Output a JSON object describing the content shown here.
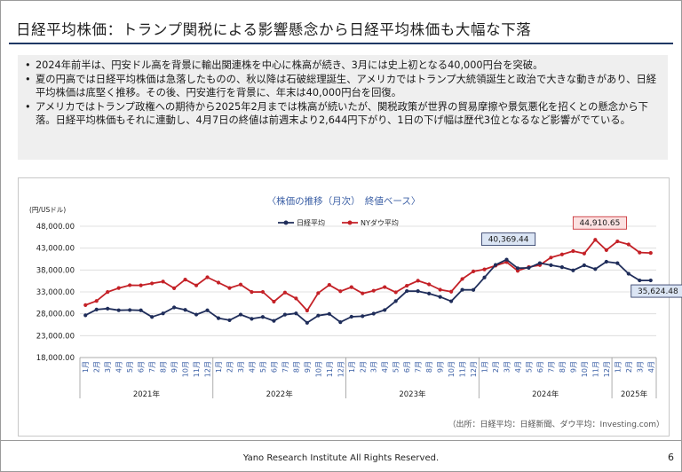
{
  "page": {
    "title": "日経平均株価：トランプ関税による影響懸念から日経平均株価も大幅な下落",
    "bullets": [
      "2024年前半は、円安ドル高を背景に輸出関連株を中心に株高が続き、3月には史上初となる40,000円台を突破。",
      "夏の円高では日経平均株価は急落したものの、秋以降は石破総理誕生、アメリカではトランプ大統領誕生と政治で大きな動きがあり、日経平均株価は底堅く推移。その後、円安進行を背景に、年末は40,000円台を回復。",
      "アメリカではトランプ政権への期待から2025年2月までは株高が続いたが、関税政策が世界の貿易摩擦や景気悪化を招くとの懸念から下落。日経平均株価もそれに連動し、4月7日の終値は前週末より2,644円下がり、1日の下げ幅は歴代3位となるなど影響がでている。"
    ],
    "footer": "Yano Research Institute All Rights Reserved.",
    "page_number": "6"
  },
  "chart_data": {
    "type": "line",
    "title": "〈株価の推移（月次）　終値ベース〉",
    "unit_label": "(円/USドル)",
    "source": "（出所：日経平均：日経新聞、ダウ平均：Investing.com）",
    "ylim": [
      18000,
      48000
    ],
    "yticks": [
      "18,000.00",
      "23,000.00",
      "28,000.00",
      "33,000.00",
      "38,000.00",
      "43,000.00",
      "48,000.00"
    ],
    "grid": true,
    "legend_position": "top-center",
    "x": [
      "1月",
      "2月",
      "3月",
      "4月",
      "5月",
      "6月",
      "7月",
      "8月",
      "9月",
      "10月",
      "11月",
      "12月",
      "1月",
      "2月",
      "3月",
      "4月",
      "5月",
      "6月",
      "7月",
      "8月",
      "9月",
      "10月",
      "11月",
      "12月",
      "1月",
      "2月",
      "3月",
      "4月",
      "5月",
      "6月",
      "7月",
      "8月",
      "9月",
      "10月",
      "11月",
      "12月",
      "1月",
      "2月",
      "3月",
      "4月",
      "5月",
      "6月",
      "7月",
      "8月",
      "9月",
      "10月",
      "11月",
      "12月",
      "1月",
      "2月",
      "3月",
      "4月"
    ],
    "year_groups": [
      {
        "label": "2021年",
        "months": 12
      },
      {
        "label": "2022年",
        "months": 12
      },
      {
        "label": "2023年",
        "months": 12
      },
      {
        "label": "2024年",
        "months": 12
      },
      {
        "label": "2025年",
        "months": 4
      }
    ],
    "series": [
      {
        "name": "日経平均",
        "color": "#1f2d5a",
        "values": [
          27660,
          28970,
          29180,
          28810,
          28860,
          28790,
          27280,
          28090,
          29450,
          28890,
          27820,
          28790,
          27000,
          26530,
          27820,
          26850,
          27280,
          26390,
          27800,
          28090,
          25940,
          27590,
          27970,
          26090,
          27330,
          27450,
          28040,
          28860,
          30890,
          33190,
          33170,
          32620,
          31860,
          30860,
          33490,
          33460,
          36290,
          39170,
          40369,
          38410,
          38490,
          39580,
          39100,
          38650,
          37920,
          39080,
          38210,
          39890,
          39570,
          37160,
          35620,
          35624
        ]
      },
      {
        "name": "NYダウ平均",
        "color": "#c42127",
        "values": [
          29980,
          30930,
          32980,
          33880,
          34530,
          34500,
          34940,
          35360,
          33840,
          35820,
          34480,
          36340,
          35130,
          33890,
          34680,
          32980,
          32990,
          30770,
          32850,
          31510,
          28730,
          32730,
          34590,
          33150,
          34090,
          32660,
          33270,
          34100,
          32910,
          34410,
          35560,
          34720,
          33510,
          33050,
          35950,
          37690,
          38150,
          38990,
          39810,
          37820,
          38690,
          39120,
          40840,
          41560,
          42330,
          41760,
          44910,
          42540,
          44540,
          43840,
          42000,
          41900
        ]
      }
    ],
    "annotations": [
      {
        "text": "40,369.44",
        "series": "日経平均",
        "index": 38
      },
      {
        "text": "44,910.65",
        "series": "NYダウ平均",
        "index": 46
      },
      {
        "text": "35,624.48",
        "series": "日経平均",
        "index": 51
      }
    ]
  }
}
